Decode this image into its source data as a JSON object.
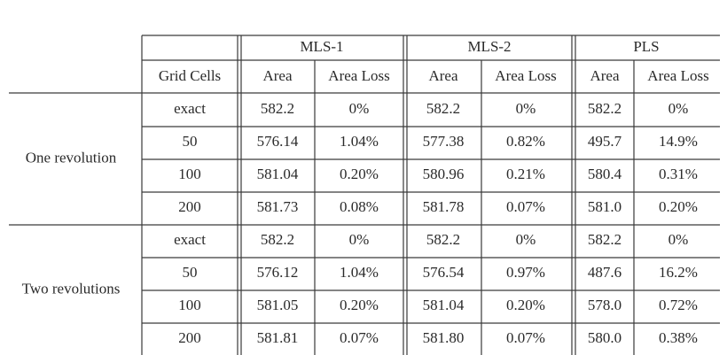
{
  "table": {
    "header_groups": [
      "MLS-1",
      "MLS-2",
      "PLS"
    ],
    "subheaders": [
      "Grid Cells",
      "Area",
      "Area Loss",
      "Area",
      "Area Loss",
      "Area",
      "Area Loss"
    ],
    "groups": [
      {
        "label": "One revolution",
        "rows": [
          [
            "exact",
            "582.2",
            "0%",
            "582.2",
            "0%",
            "582.2",
            "0%"
          ],
          [
            "50",
            "576.14",
            "1.04%",
            "577.38",
            "0.82%",
            "495.7",
            "14.9%"
          ],
          [
            "100",
            "581.04",
            "0.20%",
            "580.96",
            "0.21%",
            "580.4",
            "0.31%"
          ],
          [
            "200",
            "581.73",
            "0.08%",
            "581.78",
            "0.07%",
            "581.0",
            "0.20%"
          ]
        ]
      },
      {
        "label": "Two revolutions",
        "rows": [
          [
            "exact",
            "582.2",
            "0%",
            "582.2",
            "0%",
            "582.2",
            "0%"
          ],
          [
            "50",
            "576.12",
            "1.04%",
            "576.54",
            "0.97%",
            "487.6",
            "16.2%"
          ],
          [
            "100",
            "581.05",
            "0.20%",
            "581.04",
            "0.20%",
            "578.0",
            "0.72%"
          ],
          [
            "200",
            "581.81",
            "0.07%",
            "581.80",
            "0.07%",
            "580.0",
            "0.38%"
          ]
        ]
      }
    ]
  }
}
